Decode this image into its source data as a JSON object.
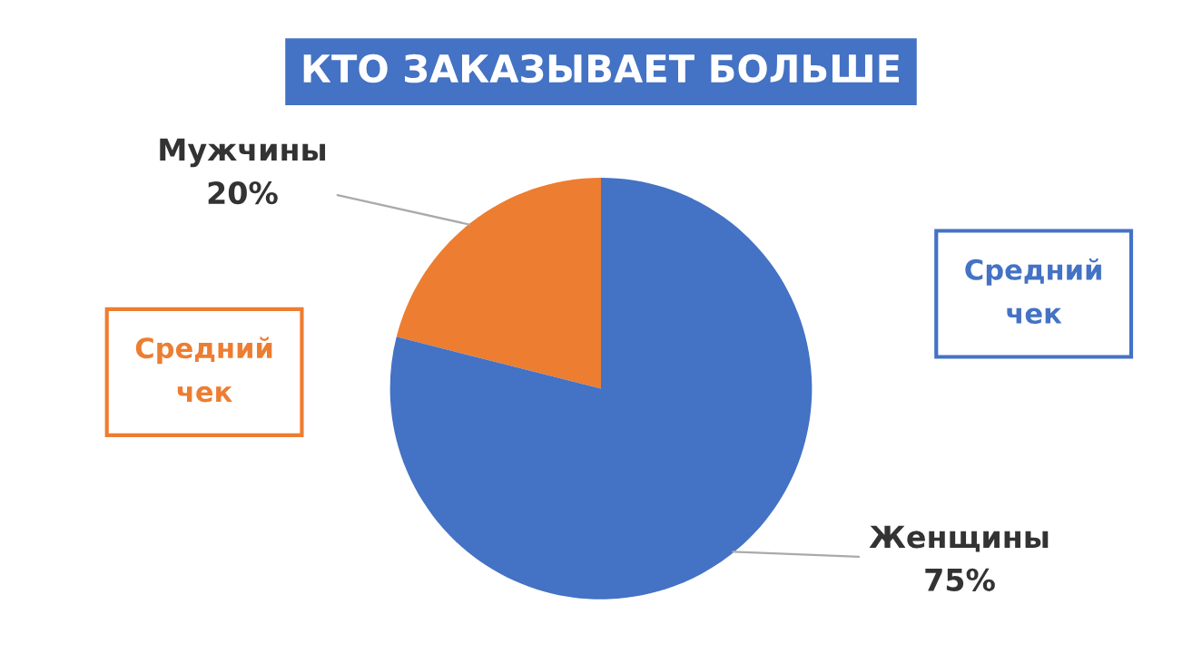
{
  "chart_data": {
    "type": "pie",
    "title": "КТО ЗАКАЗЫВАЕТ БОЛЬШЕ",
    "categories": [
      "Мужчины",
      "Женщины"
    ],
    "values": [
      20,
      75
    ],
    "value_labels": [
      "20%",
      "75%"
    ],
    "colors": [
      "#ed7d31",
      "#4472c4"
    ],
    "annotations": [
      "Средний чек",
      "Средний чек"
    ]
  }
}
